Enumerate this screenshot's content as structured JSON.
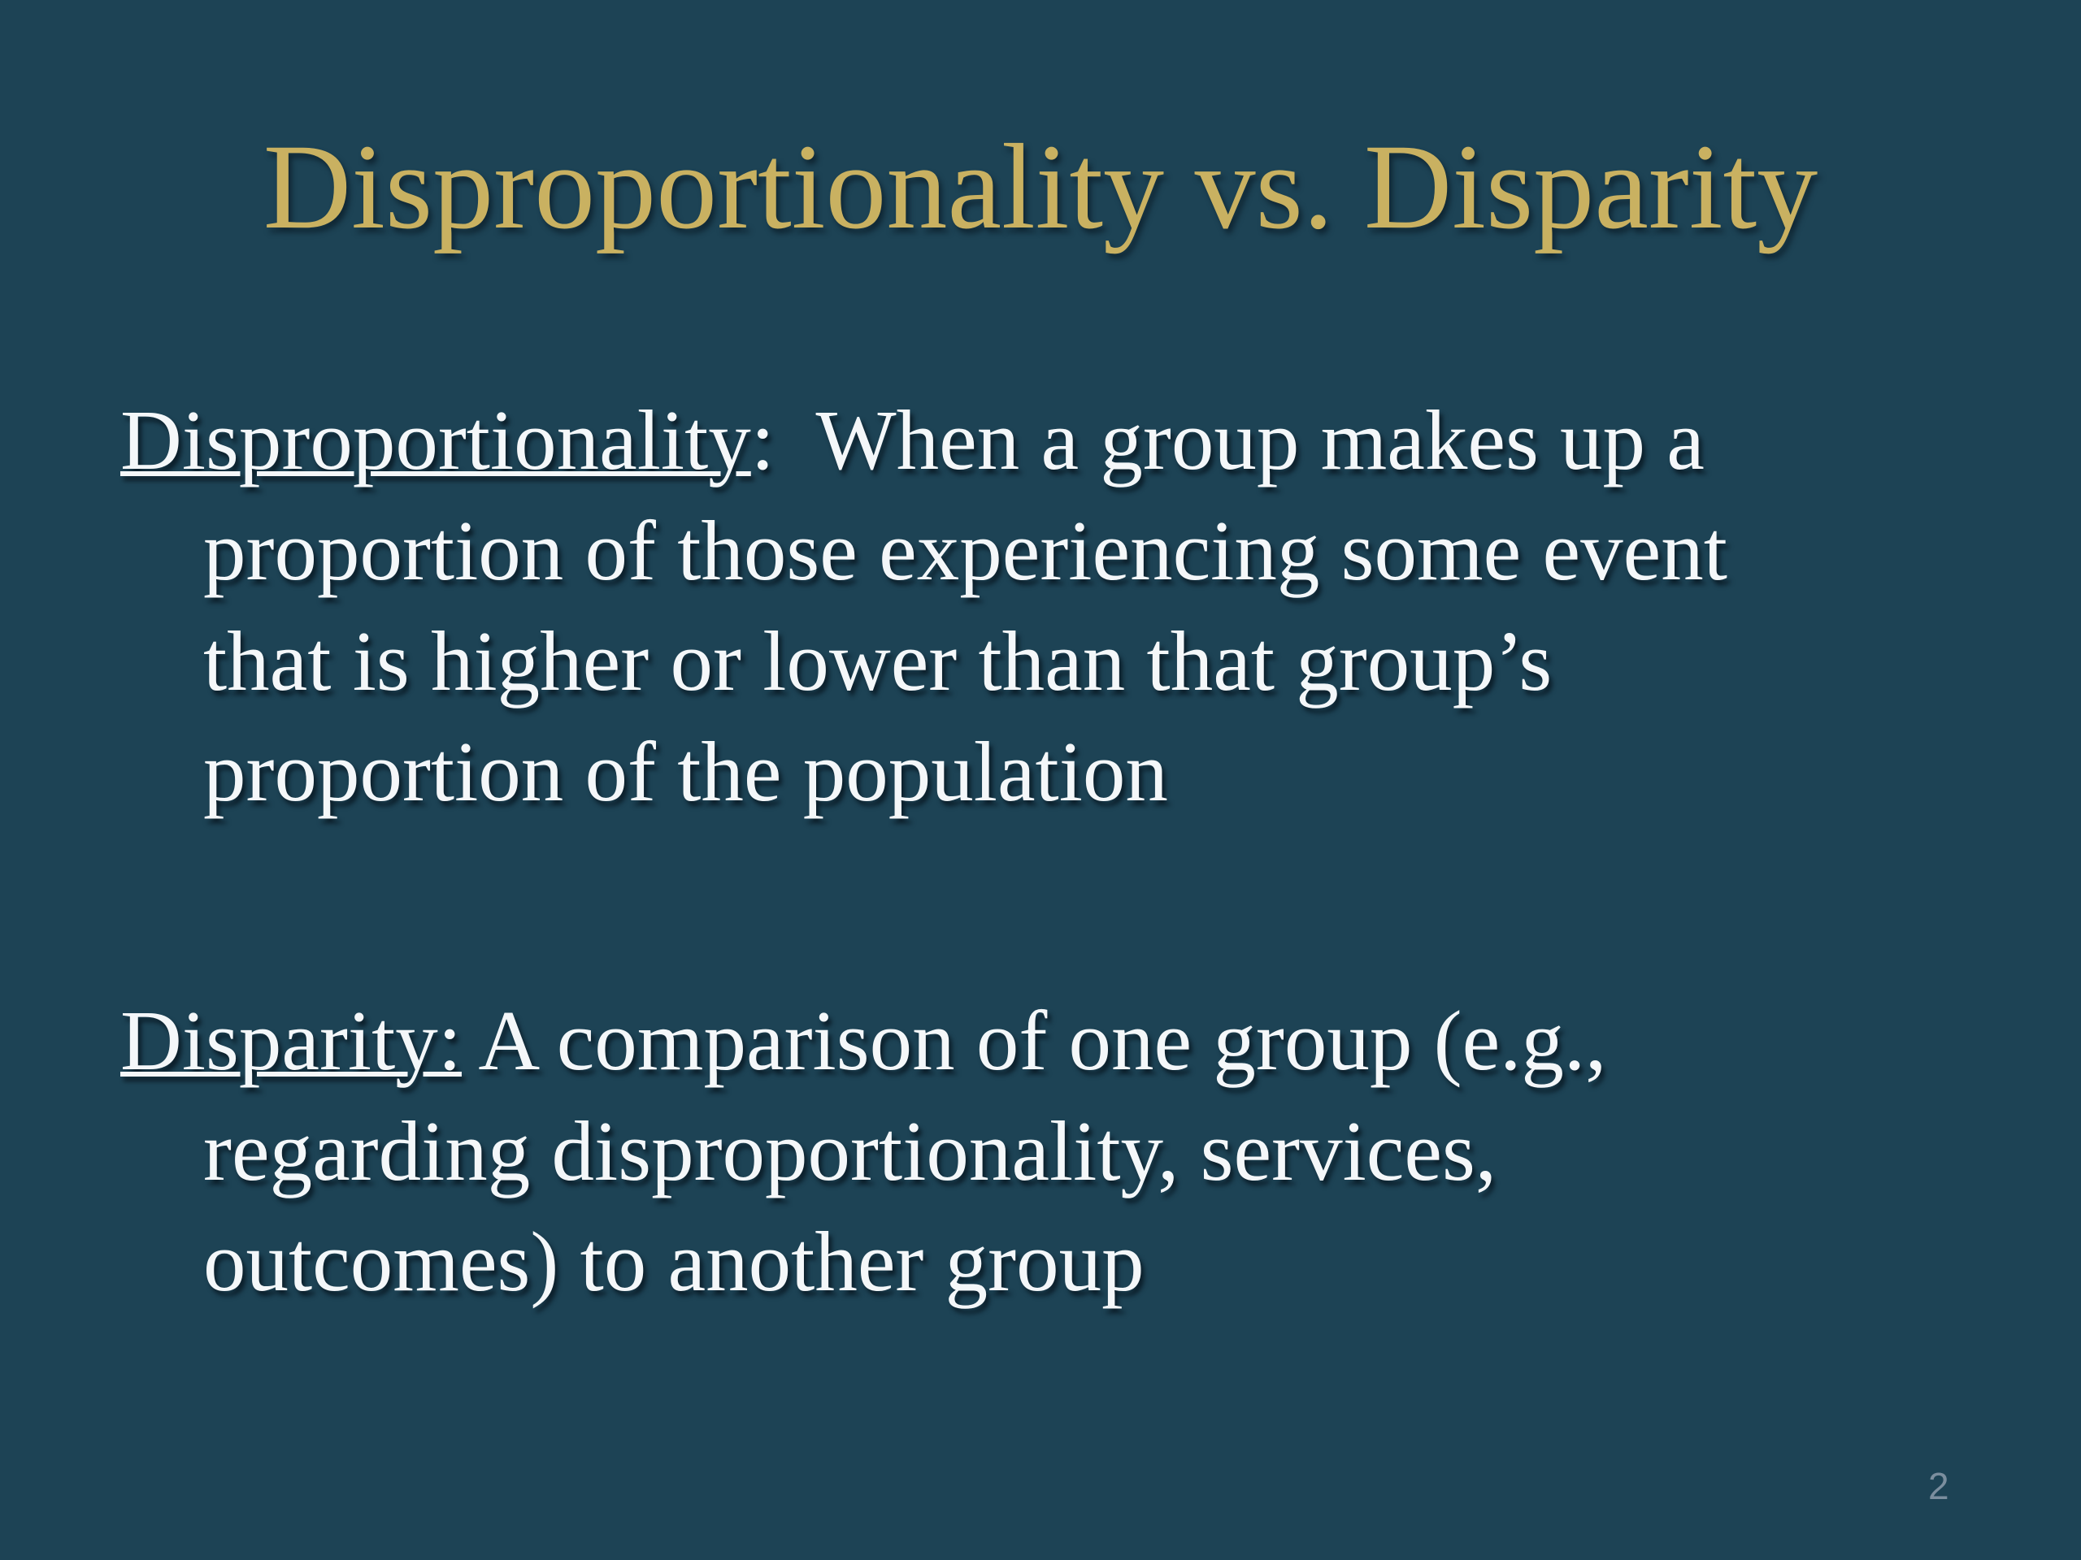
{
  "slide": {
    "title": "Disproportionality vs. Disparity",
    "page_number": "2",
    "colors": {
      "background": "#1d4355",
      "title_gold": "#c9b161",
      "body_text": "#f4f7f9",
      "page_number": "#7b8e9e"
    }
  },
  "paragraphs": [
    {
      "term": "Disproportionality",
      "after_term": ":  When a group makes up a",
      "lines": [
        "proportion of those experiencing some event",
        "that is higher or lower than that group’s",
        "proportion of the population"
      ]
    },
    {
      "term": "Disparity:",
      "after_term": " A comparison of one group (e.g.,",
      "lines": [
        "regarding disproportionality, services,",
        "outcomes) to another group"
      ]
    }
  ]
}
